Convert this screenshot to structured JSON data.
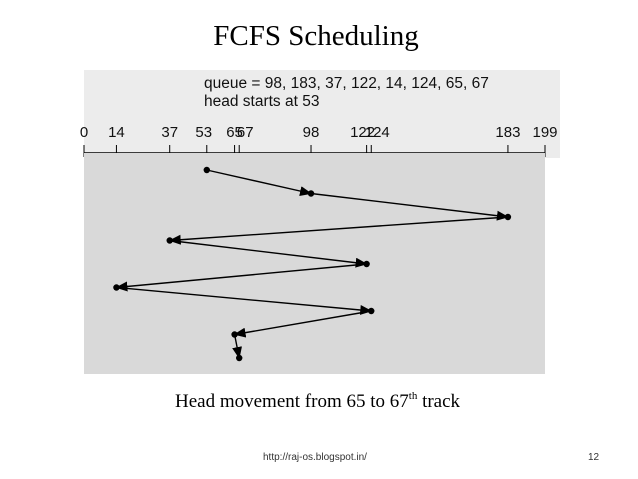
{
  "title": "FCFS Scheduling",
  "queue_text": "queue = 98, 183, 37, 122, 14, 124, 65, 67",
  "head_text": "head starts at 53",
  "caption": {
    "main": "Head movement from 65 to 67",
    "sup": "th",
    "tail": " track"
  },
  "footer_url": "http://raj-os.blogspot.in/",
  "page_number": "12",
  "axis": {
    "min": 0,
    "max": 199,
    "ticks": [
      0,
      14,
      37,
      53,
      65,
      67,
      98,
      122,
      124,
      183,
      199
    ]
  },
  "head_path": [
    53,
    98,
    183,
    37,
    122,
    14,
    124,
    65,
    67
  ],
  "colors": {
    "plot_background": "#d9d9d9",
    "line": "#000000"
  }
}
